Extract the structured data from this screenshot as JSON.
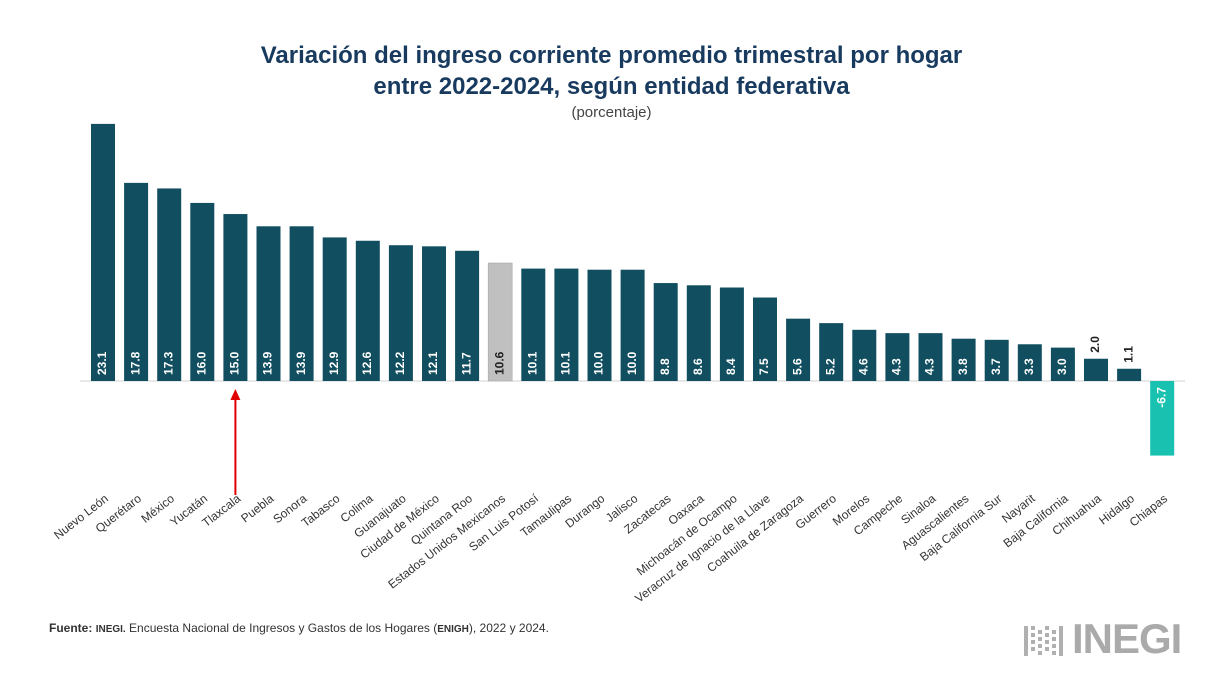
{
  "chart_data": {
    "type": "bar",
    "title_line1": "Variación del ingreso corriente promedio trimestral por hogar",
    "title_line2": "entre 2022-2024, según entidad federativa",
    "subtitle": "(porcentaje)",
    "categories": [
      "Nuevo León",
      "Querétaro",
      "México",
      "Yucatán",
      "Tlaxcala",
      "Puebla",
      "Sonora",
      "Tabasco",
      "Colima",
      "Guanajuato",
      "Ciudad de México",
      "Quintana Roo",
      "Estados Unidos Mexicanos",
      "San Luis Potosí",
      "Tamaulipas",
      "Durango",
      "Jalisco",
      "Zacatecas",
      "Oaxaca",
      "Michoacán de Ocampo",
      "Veracruz de Ignacio de la Llave",
      "Coahuila de Zaragoza",
      "Guerrero",
      "Morelos",
      "Campeche",
      "Sinaloa",
      "Aguascalientes",
      "Baja California Sur",
      "Nayarit",
      "Baja California",
      "Chihuahua",
      "Hidalgo",
      "Chiapas"
    ],
    "values": [
      23.1,
      17.8,
      17.3,
      16.0,
      15.0,
      13.9,
      13.9,
      12.9,
      12.6,
      12.2,
      12.1,
      11.7,
      10.6,
      10.1,
      10.1,
      10.0,
      10.0,
      8.8,
      8.6,
      8.4,
      7.5,
      5.6,
      5.2,
      4.6,
      4.3,
      4.3,
      3.8,
      3.7,
      3.3,
      3.0,
      2.0,
      1.1,
      -6.7
    ],
    "labels": [
      "23.1",
      "17.8",
      "17.3",
      "16.0",
      "15.0",
      "13.9",
      "13.9",
      "12.9",
      "12.6",
      "12.2",
      "12.1",
      "11.7",
      "10.6",
      "10.1",
      "10.1",
      "10.0",
      "10.0",
      "8.8",
      "8.6",
      "8.4",
      "7.5",
      "5.6",
      "5.2",
      "4.6",
      "4.3",
      "4.3",
      "3.8",
      "3.7",
      "3.3",
      "3.0",
      "2.0",
      "1.1",
      "-6.7"
    ],
    "highlight_national": "Estados Unidos Mexicanos",
    "highlight_negative": "Chiapas",
    "arrow_target": "Tlaxcala",
    "ylim": [
      -6.7,
      23.1
    ],
    "grid": false,
    "colors": {
      "bar": "#114e60",
      "national": "#c0c0c0",
      "negative": "#19c1b0",
      "arrow": "#e00000",
      "title": "#173a5e"
    }
  },
  "source": {
    "prefix": "Fuente:",
    "org": "INEGI.",
    "text1": " Encuesta Nacional de Ingresos y Gastos de los Hogares (",
    "abbr": "ENIGH",
    "text2": "), 2022 y 2024."
  },
  "logo": {
    "text": "INEGI"
  }
}
